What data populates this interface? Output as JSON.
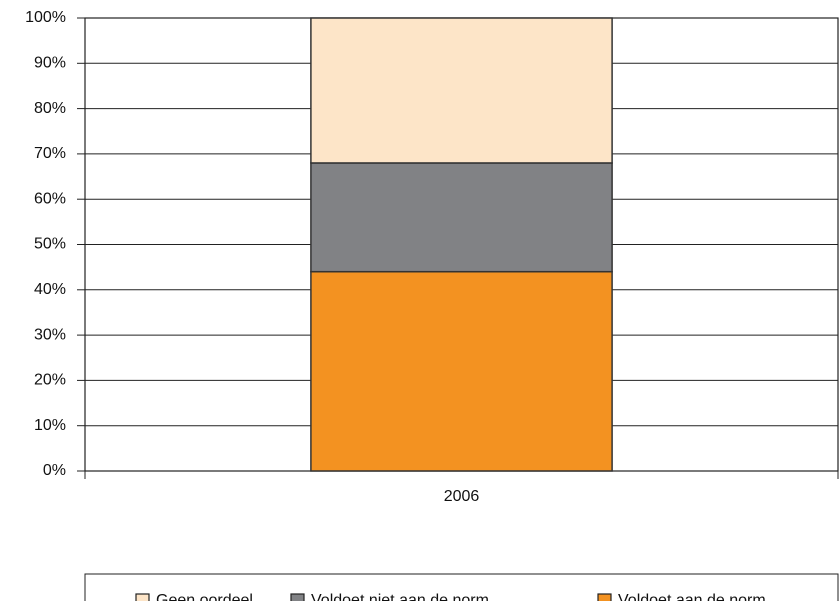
{
  "chart_data": {
    "type": "stacked_bar",
    "categories": [
      "2006"
    ],
    "series": [
      {
        "name": "Geen oordeel",
        "color": "#fde5c8",
        "values": [
          32
        ]
      },
      {
        "name": "Voldoet niet aan de norm",
        "color": "#818285",
        "values": [
          24
        ]
      },
      {
        "name": "Voldoet aan de norm",
        "color": "#f39221",
        "values": [
          44
        ]
      }
    ],
    "ylim": [
      0,
      100
    ],
    "yticks": [
      {
        "value": 0,
        "label": "0%"
      },
      {
        "value": 10,
        "label": "10%"
      },
      {
        "value": 20,
        "label": "20%"
      },
      {
        "value": 30,
        "label": "30%"
      },
      {
        "value": 40,
        "label": "40%"
      },
      {
        "value": 50,
        "label": "50%"
      },
      {
        "value": 60,
        "label": "60%"
      },
      {
        "value": 70,
        "label": "70%"
      },
      {
        "value": 80,
        "label": "80%"
      },
      {
        "value": 90,
        "label": "90%"
      },
      {
        "value": 100,
        "label": "100%"
      }
    ],
    "grid": true,
    "legend": "bottom"
  }
}
